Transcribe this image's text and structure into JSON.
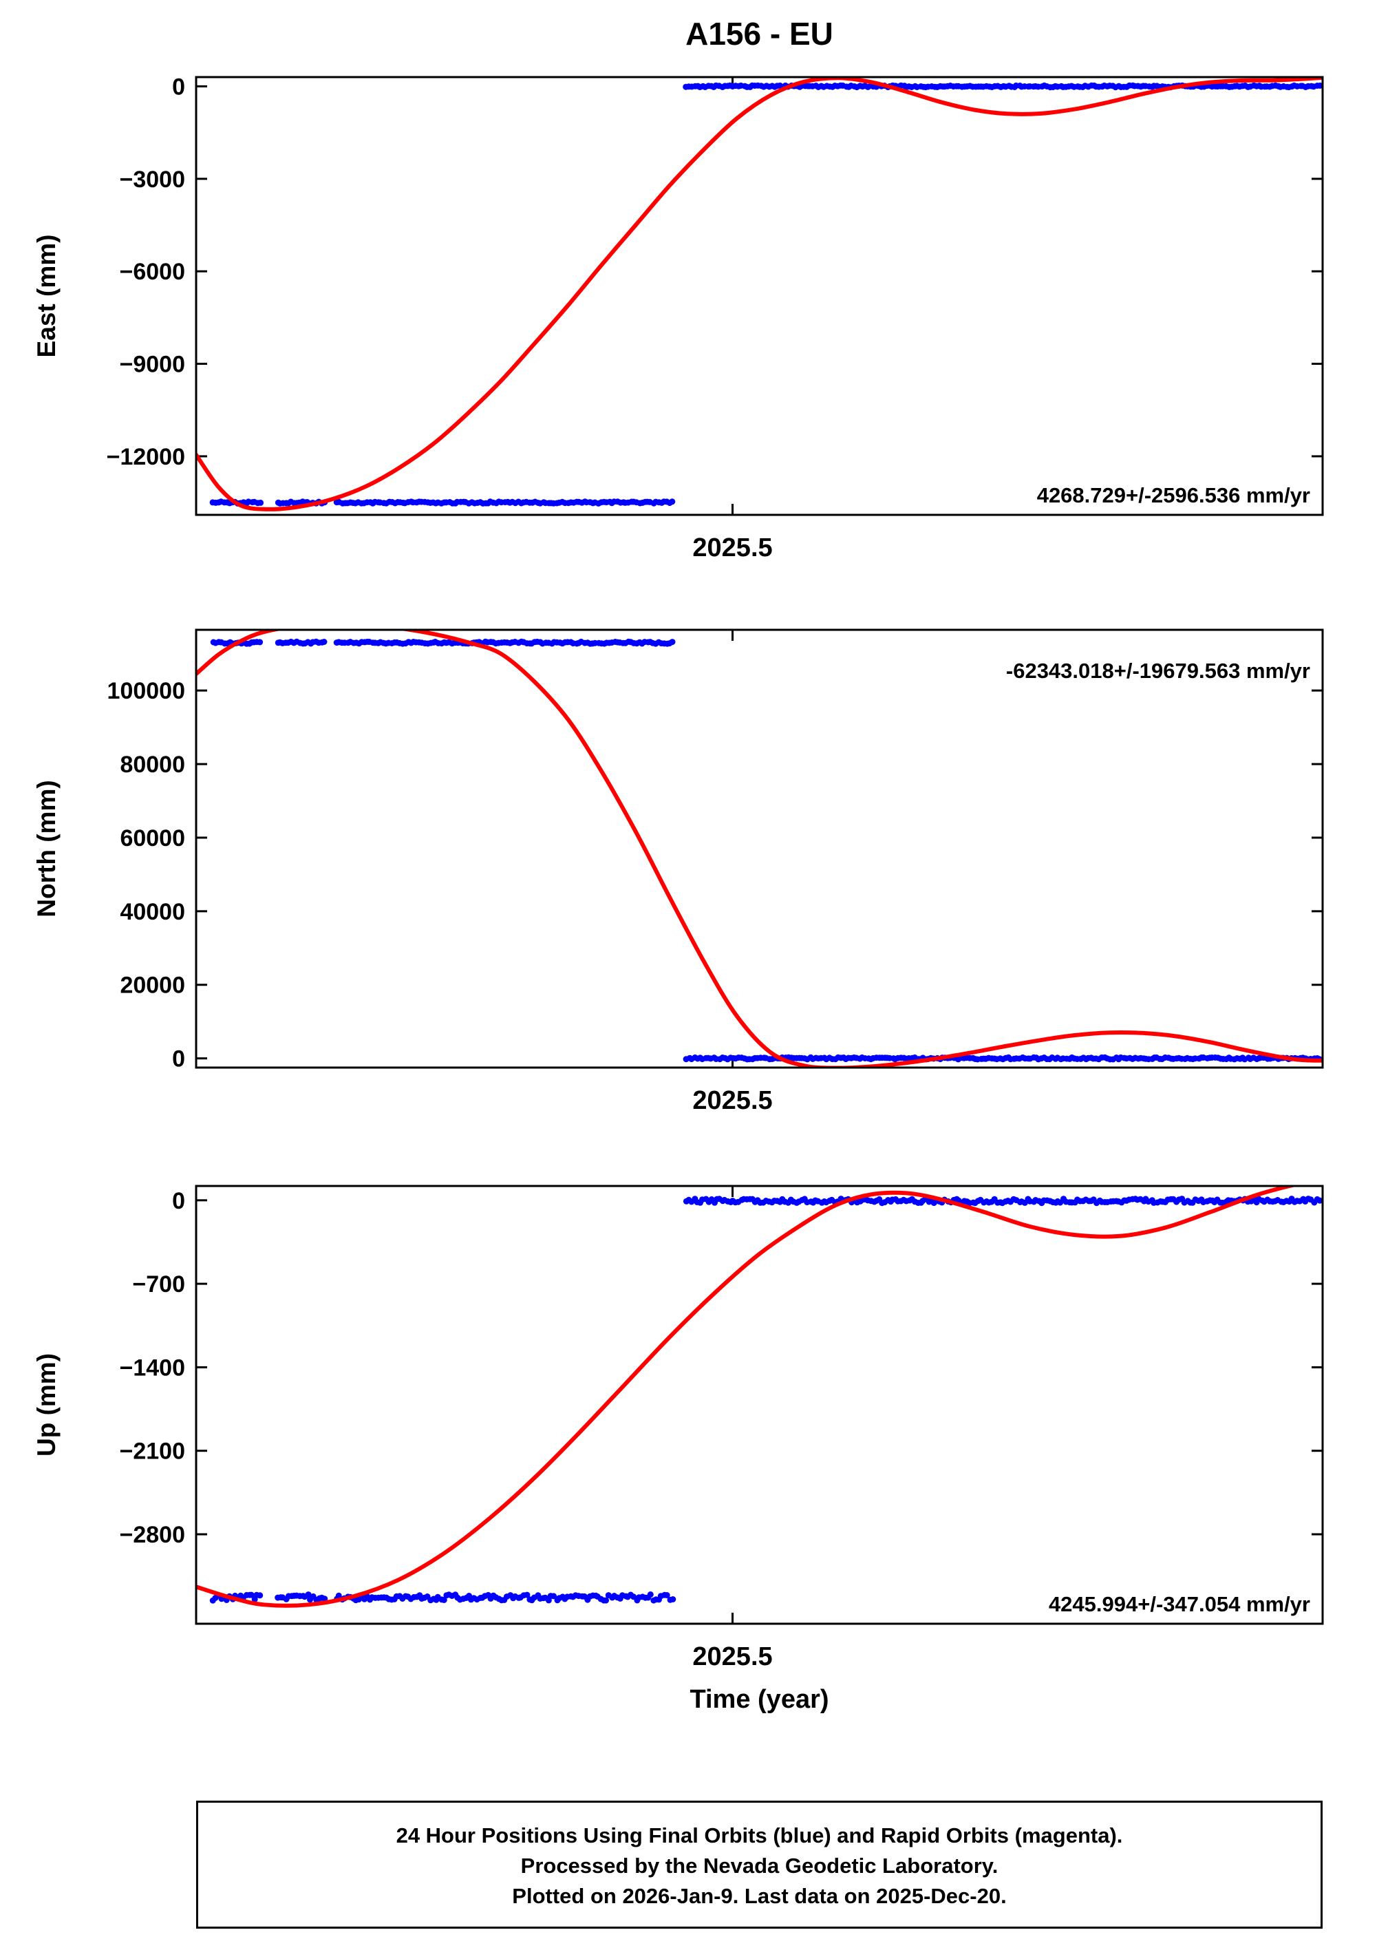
{
  "title": "A156 - EU",
  "xlabel": "Time (year)",
  "footer": {
    "line1": "24 Hour Positions Using Final Orbits (blue) and Rapid Orbits (magenta).",
    "line2": "Processed by the Nevada Geodetic Laboratory.",
    "line3": "Plotted on 2026-Jan-9. Last data on 2025-Dec-20."
  },
  "colors": {
    "final_orbits": "#0000ff",
    "model_curve": "#ff0000",
    "axis": "#000000"
  },
  "chart_data": [
    {
      "name": "east",
      "type": "scatter",
      "ylabel": "East (mm)",
      "xlim": [
        2025.0,
        2026.05
      ],
      "ylim": [
        -13900,
        300
      ],
      "grid": false,
      "xticks": [
        {
          "value": 2025.5,
          "label": "2025.5"
        }
      ],
      "yticks": [
        {
          "value": 0,
          "label": "0"
        },
        {
          "value": -3000,
          "label": "−3000"
        },
        {
          "value": -6000,
          "label": "−6000"
        },
        {
          "value": -9000,
          "label": "−9000"
        },
        {
          "value": -12000,
          "label": "−12000"
        }
      ],
      "annotation": {
        "text": "4268.729+/-2596.536 mm/yr",
        "corner": "bottom-right"
      },
      "series": [
        {
          "name": "final-orbits",
          "kind": "dots",
          "color": "#0000ff",
          "segments": [
            {
              "x0": 2025.016,
              "x1": 2025.061,
              "y": -13500,
              "noise": 30
            },
            {
              "x0": 2025.076,
              "x1": 2025.121,
              "y": -13500,
              "noise": 30
            },
            {
              "x0": 2025.131,
              "x1": 2025.446,
              "y": -13500,
              "noise": 30
            },
            {
              "x0": 2025.457,
              "x1": 2026.048,
              "y": 0,
              "noise": 28
            }
          ]
        },
        {
          "name": "model-curve",
          "kind": "line",
          "color": "#ff0000",
          "points": [
            [
              2025.0,
              -11950
            ],
            [
              2025.021,
              -13000
            ],
            [
              2025.042,
              -13600
            ],
            [
              2025.068,
              -13720
            ],
            [
              2025.095,
              -13640
            ],
            [
              2025.126,
              -13400
            ],
            [
              2025.158,
              -12980
            ],
            [
              2025.189,
              -12380
            ],
            [
              2025.221,
              -11600
            ],
            [
              2025.252,
              -10650
            ],
            [
              2025.284,
              -9560
            ],
            [
              2025.315,
              -8360
            ],
            [
              2025.347,
              -7090
            ],
            [
              2025.378,
              -5790
            ],
            [
              2025.41,
              -4490
            ],
            [
              2025.441,
              -3230
            ],
            [
              2025.473,
              -2060
            ],
            [
              2025.504,
              -1040
            ],
            [
              2025.536,
              -280
            ],
            [
              2025.567,
              150
            ],
            [
              2025.599,
              270
            ],
            [
              2025.63,
              130
            ],
            [
              2025.662,
              -170
            ],
            [
              2025.693,
              -500
            ],
            [
              2025.725,
              -760
            ],
            [
              2025.756,
              -890
            ],
            [
              2025.788,
              -880
            ],
            [
              2025.819,
              -740
            ],
            [
              2025.851,
              -510
            ],
            [
              2025.882,
              -250
            ],
            [
              2025.914,
              -20
            ],
            [
              2025.945,
              130
            ],
            [
              2025.977,
              190
            ],
            [
              2026.008,
              200
            ],
            [
              2026.05,
              280
            ]
          ]
        }
      ]
    },
    {
      "name": "north",
      "type": "scatter",
      "ylabel": "North (mm)",
      "xlim": [
        2025.0,
        2026.05
      ],
      "ylim": [
        -2500,
        116500
      ],
      "grid": false,
      "xticks": [
        {
          "value": 2025.5,
          "label": "2025.5"
        }
      ],
      "yticks": [
        {
          "value": 0,
          "label": "0"
        },
        {
          "value": 20000,
          "label": "20000"
        },
        {
          "value": 40000,
          "label": "40000"
        },
        {
          "value": 60000,
          "label": "60000"
        },
        {
          "value": 80000,
          "label": "80000"
        },
        {
          "value": 100000,
          "label": "100000"
        }
      ],
      "annotation": {
        "text": "-62343.018+/-19679.563 mm/yr",
        "corner": "top-right"
      },
      "series": [
        {
          "name": "final-orbits",
          "kind": "dots",
          "color": "#0000ff",
          "segments": [
            {
              "x0": 2025.016,
              "x1": 2025.061,
              "y": 113000,
              "noise": 280
            },
            {
              "x0": 2025.076,
              "x1": 2025.121,
              "y": 113000,
              "noise": 280
            },
            {
              "x0": 2025.131,
              "x1": 2025.446,
              "y": 113000,
              "noise": 280
            },
            {
              "x0": 2025.457,
              "x1": 2026.048,
              "y": 0,
              "noise": 260
            }
          ]
        },
        {
          "name": "model-curve",
          "kind": "line",
          "color": "#ff0000",
          "points": [
            [
              2025.0,
              104500
            ],
            [
              2025.021,
              109800
            ],
            [
              2025.042,
              113500
            ],
            [
              2025.063,
              115900
            ],
            [
              2025.095,
              117500
            ],
            [
              2025.137,
              118100
            ],
            [
              2025.179,
              117300
            ],
            [
              2025.221,
              115400
            ],
            [
              2025.257,
              112800
            ],
            [
              2025.284,
              110000
            ],
            [
              2025.315,
              102500
            ],
            [
              2025.347,
              92000
            ],
            [
              2025.378,
              78000
            ],
            [
              2025.41,
              61500
            ],
            [
              2025.441,
              44000
            ],
            [
              2025.473,
              26500
            ],
            [
              2025.504,
              11500
            ],
            [
              2025.536,
              1500
            ],
            [
              2025.567,
              -2000
            ],
            [
              2025.599,
              -2600
            ],
            [
              2025.63,
              -2200
            ],
            [
              2025.662,
              -1200
            ],
            [
              2025.693,
              100
            ],
            [
              2025.725,
              1700
            ],
            [
              2025.756,
              3400
            ],
            [
              2025.788,
              5000
            ],
            [
              2025.819,
              6300
            ],
            [
              2025.851,
              7000
            ],
            [
              2025.882,
              6900
            ],
            [
              2025.914,
              6000
            ],
            [
              2025.945,
              4400
            ],
            [
              2025.977,
              2300
            ],
            [
              2026.008,
              500
            ],
            [
              2026.029,
              -400
            ],
            [
              2026.05,
              -600
            ]
          ]
        }
      ]
    },
    {
      "name": "up",
      "type": "scatter",
      "ylabel": "Up (mm)",
      "xlim": [
        2025.0,
        2026.05
      ],
      "ylim": [
        -3550,
        120
      ],
      "grid": false,
      "xticks": [
        {
          "value": 2025.5,
          "label": "2025.5"
        }
      ],
      "yticks": [
        {
          "value": 0,
          "label": "0"
        },
        {
          "value": -700,
          "label": "−700"
        },
        {
          "value": -1400,
          "label": "−1400"
        },
        {
          "value": -2100,
          "label": "−2100"
        },
        {
          "value": -2800,
          "label": "−2800"
        }
      ],
      "annotation": {
        "text": "4245.994+/-347.054 mm/yr",
        "corner": "bottom-right"
      },
      "series": [
        {
          "name": "final-orbits",
          "kind": "dots",
          "color": "#0000ff",
          "segments": [
            {
              "x0": 2025.016,
              "x1": 2025.061,
              "y": -3330,
              "noise": 25
            },
            {
              "x0": 2025.076,
              "x1": 2025.121,
              "y": -3330,
              "noise": 25
            },
            {
              "x0": 2025.131,
              "x1": 2025.446,
              "y": -3330,
              "noise": 25
            },
            {
              "x0": 2025.457,
              "x1": 2026.048,
              "y": -5,
              "noise": 18
            }
          ]
        },
        {
          "name": "model-curve",
          "kind": "line",
          "color": "#ff0000",
          "points": [
            [
              2025.0,
              -3240
            ],
            [
              2025.032,
              -3330
            ],
            [
              2025.063,
              -3390
            ],
            [
              2025.105,
              -3390
            ],
            [
              2025.147,
              -3320
            ],
            [
              2025.189,
              -3180
            ],
            [
              2025.231,
              -2960
            ],
            [
              2025.273,
              -2670
            ],
            [
              2025.315,
              -2330
            ],
            [
              2025.357,
              -1950
            ],
            [
              2025.399,
              -1550
            ],
            [
              2025.441,
              -1150
            ],
            [
              2025.483,
              -780
            ],
            [
              2025.525,
              -450
            ],
            [
              2025.567,
              -190
            ],
            [
              2025.599,
              -30
            ],
            [
              2025.63,
              50
            ],
            [
              2025.662,
              60
            ],
            [
              2025.693,
              10
            ],
            [
              2025.735,
              -100
            ],
            [
              2025.777,
              -220
            ],
            [
              2025.819,
              -290
            ],
            [
              2025.861,
              -300
            ],
            [
              2025.903,
              -230
            ],
            [
              2025.945,
              -100
            ],
            [
              2025.987,
              40
            ],
            [
              2026.019,
              120
            ],
            [
              2026.05,
              180
            ]
          ]
        }
      ]
    }
  ]
}
